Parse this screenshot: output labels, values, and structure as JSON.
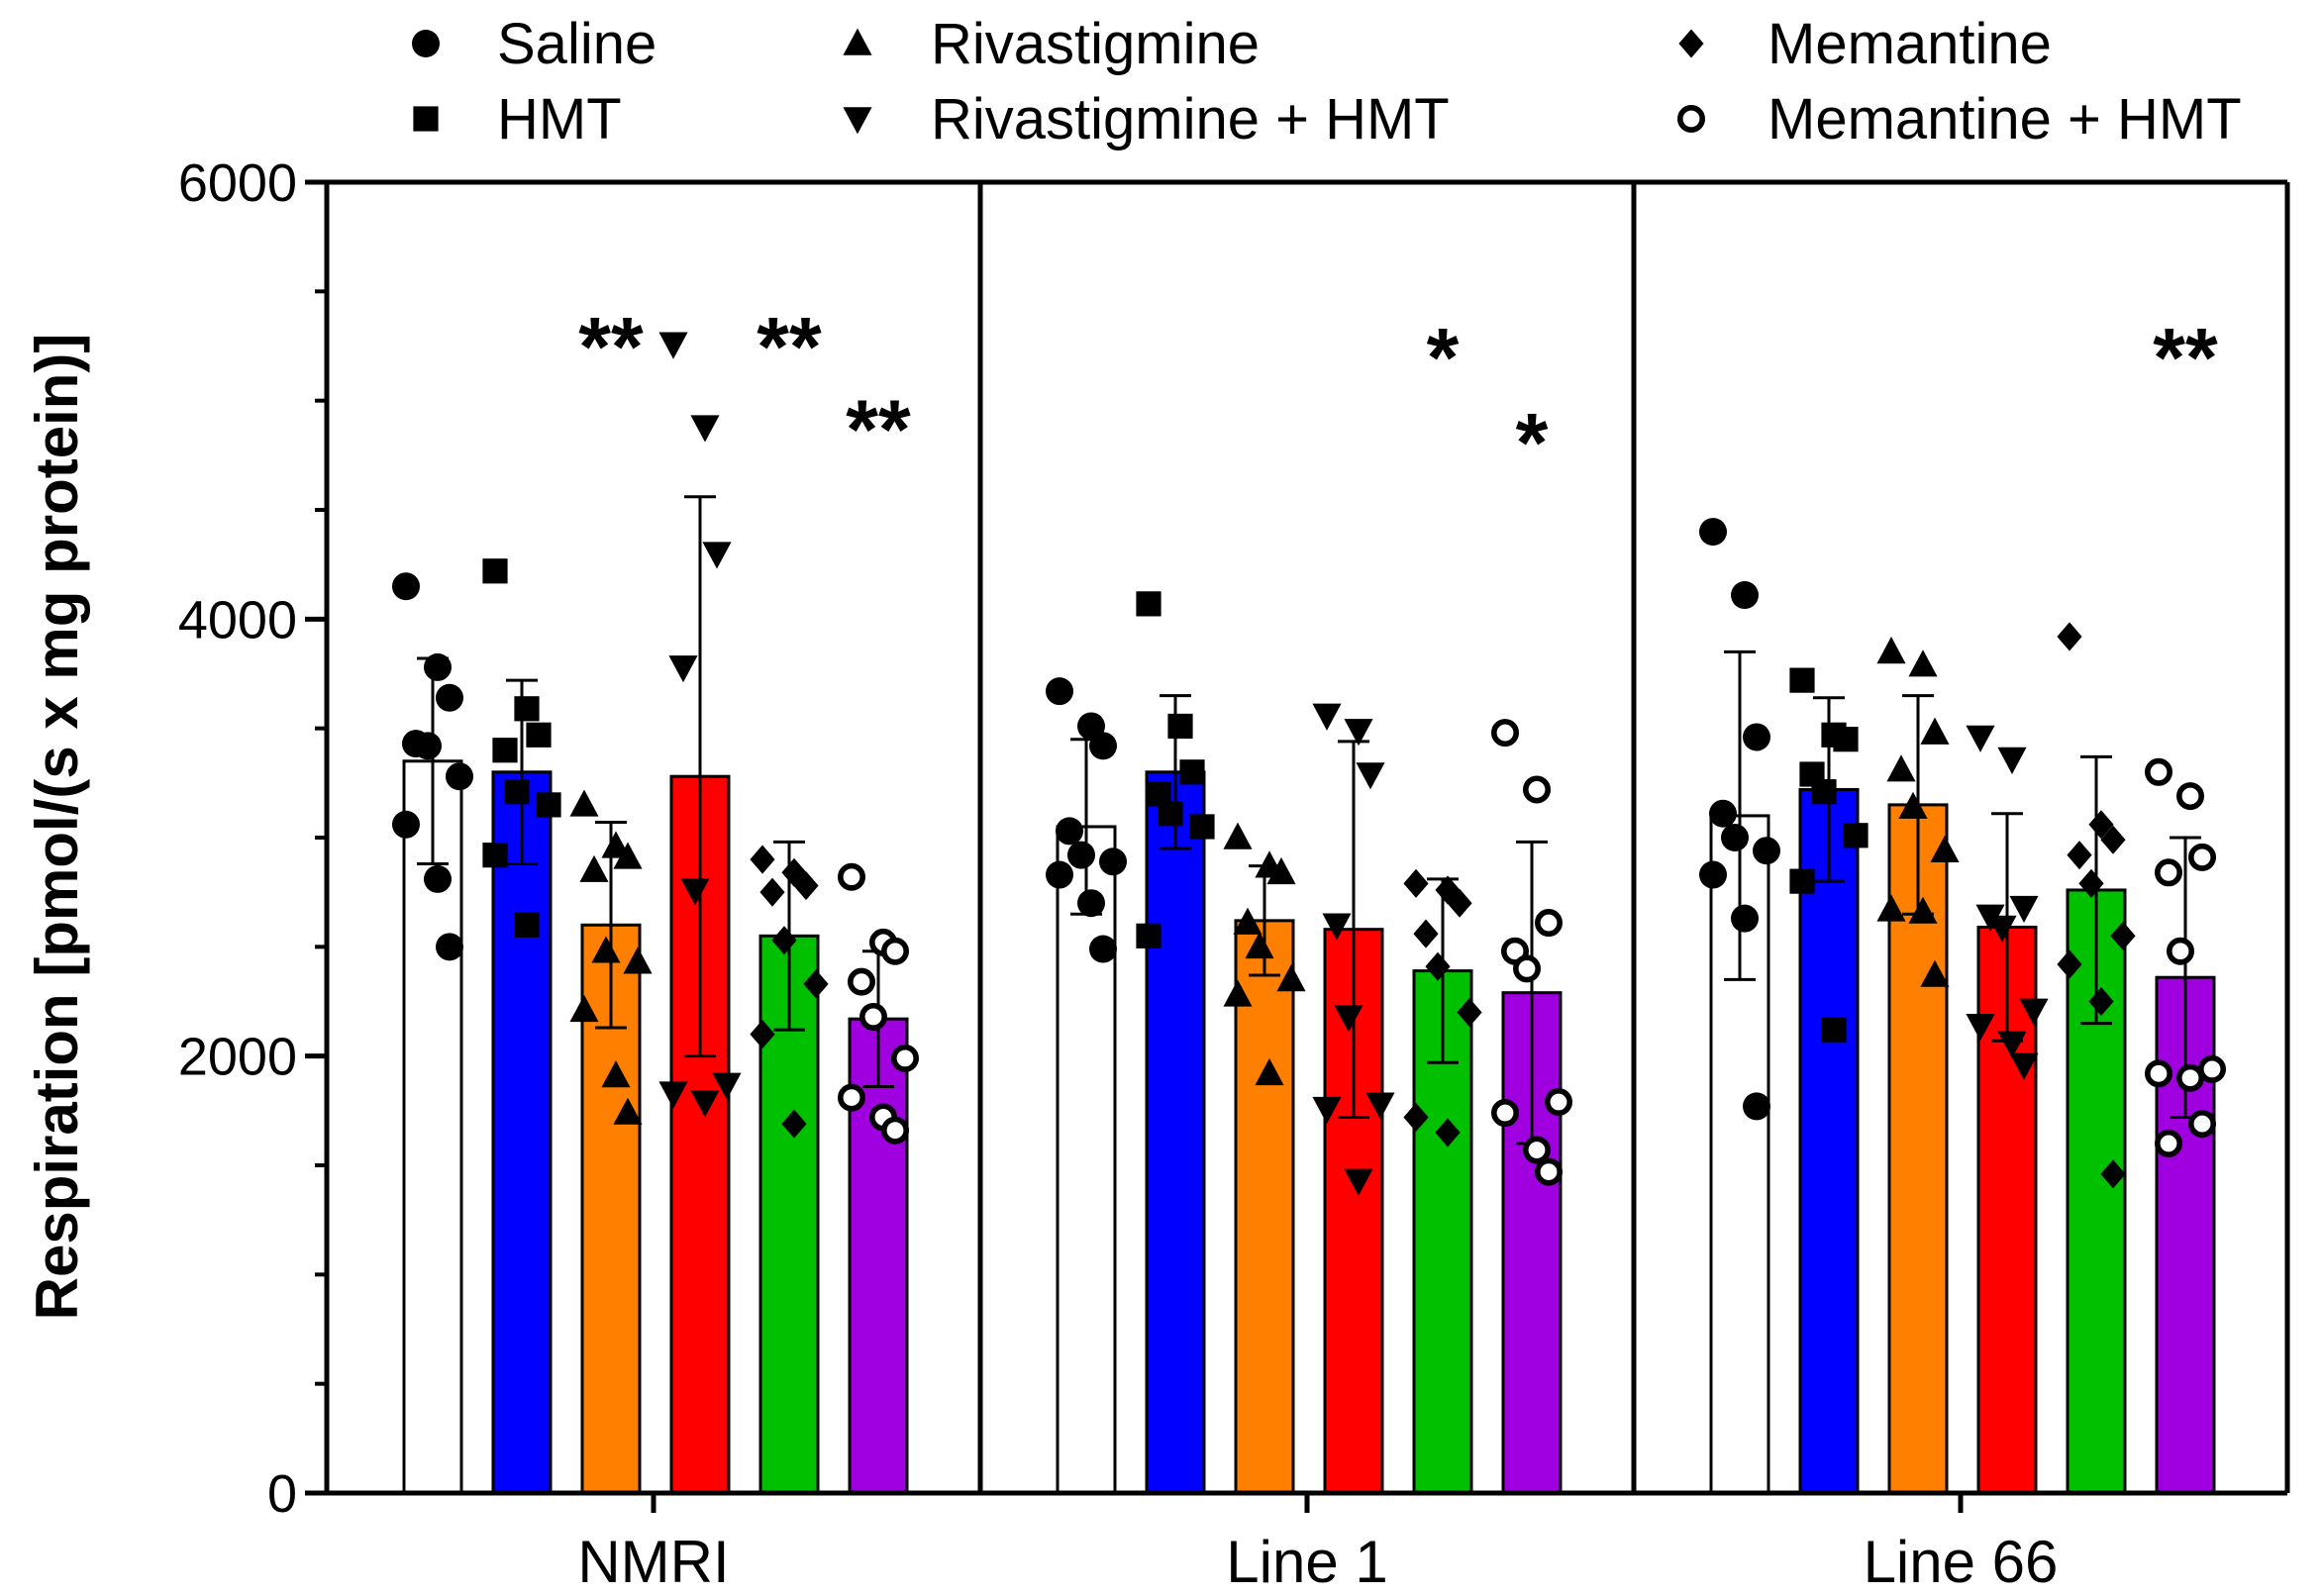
{
  "chart_data": {
    "type": "bar",
    "title": "",
    "xlabel": "",
    "ylabel": "Respiration [pmol/(s x mg protein)]",
    "ylim": [
      0,
      6000
    ],
    "yticks": [
      0,
      2000,
      4000,
      6000
    ],
    "yticklabels": [
      "0",
      "2000",
      "4000",
      "6000"
    ],
    "grid": false,
    "legend_position": "top",
    "categories": [
      "NMRI",
      "Line 1",
      "Line 66"
    ],
    "series": [
      {
        "name": "Saline",
        "color": "#ffffff",
        "marker": "circle",
        "values": [
          3350,
          3050,
          3100
        ],
        "sd": [
          470,
          400,
          750
        ],
        "points": [
          [
            4150,
            3780,
            3640,
            3430,
            3420,
            3280,
            3060,
            2810,
            2500
          ],
          [
            3670,
            3510,
            3420,
            3030,
            2920,
            2890,
            2830,
            2700,
            2490
          ],
          [
            4400,
            4110,
            3460,
            3110,
            3000,
            2940,
            2830,
            2630,
            1770
          ]
        ]
      },
      {
        "name": "HMT",
        "color": "#0000ff",
        "marker": "square",
        "values": [
          3300,
          3300,
          3220
        ],
        "sd": [
          420,
          350,
          420
        ],
        "points": [
          [
            4220,
            3590,
            3470,
            3400,
            3210,
            3150,
            2920,
            2600
          ],
          [
            4070,
            3510,
            3300,
            3200,
            3110,
            3050,
            2550
          ],
          [
            3720,
            3470,
            3450,
            3290,
            3210,
            3010,
            2800,
            2120
          ]
        ]
      },
      {
        "name": "Rivastigmine",
        "color": "#ff8000",
        "marker": "triangle-up",
        "values": [
          2600,
          2620,
          3150
        ],
        "sd": [
          470,
          250,
          500
        ],
        "points": [
          [
            3150,
            2960,
            2910,
            2850,
            2480,
            2430,
            2210,
            1910,
            1740
          ],
          [
            3000,
            2870,
            2840,
            2610,
            2500,
            2350,
            2280,
            1920
          ],
          [
            3850,
            3790,
            3480,
            3310,
            3140,
            2940,
            2670,
            2660,
            2370
          ]
        ]
      },
      {
        "name": "Rivastigmine + HMT",
        "color": "#ff0000",
        "marker": "triangle-down",
        "values": [
          3280,
          2580,
          2590
        ],
        "sd": [
          1280,
          860,
          520
        ],
        "points": [
          [
            5260,
            4880,
            4300,
            3780,
            2760,
            1870,
            1830,
            1790
          ],
          [
            3560,
            3490,
            3290,
            2600,
            2180,
            1780,
            1760,
            1430
          ],
          [
            3460,
            3360,
            2680,
            2640,
            2590,
            2210,
            2140,
            2060,
            1960
          ]
        ]
      },
      {
        "name": "Memantine",
        "color": "#00c000",
        "marker": "diamond",
        "values": [
          2550,
          2390,
          2760
        ],
        "sd": [
          430,
          420,
          610
        ],
        "points": [
          [
            2900,
            2840,
            2780,
            2750,
            2530,
            2330,
            2100,
            1690
          ],
          [
            2790,
            2760,
            2700,
            2560,
            2410,
            2200,
            1720,
            1650
          ],
          [
            3920,
            3060,
            2990,
            2920,
            2790,
            2550,
            2420,
            2250,
            1460
          ]
        ]
      },
      {
        "name": "Memantine + HMT",
        "color": "#a000e0",
        "marker": "open-circle",
        "values": [
          2170,
          2290,
          2360
        ],
        "sd": [
          310,
          690,
          640
        ],
        "points": [
          [
            2820,
            2520,
            2480,
            2340,
            2180,
            1990,
            1810,
            1720,
            1660
          ],
          [
            3480,
            3220,
            2610,
            2480,
            2400,
            1790,
            1740,
            1570,
            1470
          ],
          [
            3300,
            3190,
            2910,
            2840,
            2480,
            1940,
            1920,
            1900,
            1690,
            1600
          ]
        ]
      }
    ],
    "annotations": [
      {
        "text": "**",
        "category": "NMRI",
        "series": "Rivastigmine",
        "y": 5380
      },
      {
        "text": "**",
        "category": "NMRI",
        "series": "Memantine",
        "y": 5380
      },
      {
        "text": "**",
        "category": "NMRI",
        "series": "Memantine + HMT",
        "y": 5000
      },
      {
        "text": "*",
        "category": "Line 1",
        "series": "Memantine",
        "y": 5330
      },
      {
        "text": "*",
        "category": "Line 1",
        "series": "Memantine + HMT",
        "y": 4940
      },
      {
        "text": "**",
        "category": "Line 66",
        "series": "Memantine + HMT",
        "y": 5330
      }
    ]
  }
}
